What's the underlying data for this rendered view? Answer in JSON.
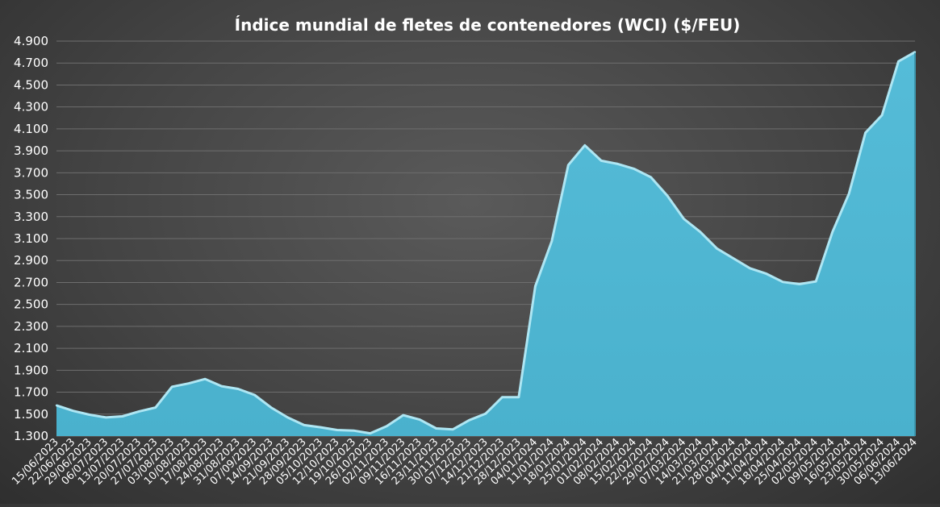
{
  "chart_data": {
    "type": "area",
    "title": "Índice mundial de fletes de contenedores (WCI) ($/FEU)",
    "xlabel": "",
    "ylabel": "",
    "ylim": [
      1300,
      4900
    ],
    "y_ticks": [
      "1.300",
      "1.500",
      "1.700",
      "1.900",
      "2.100",
      "2.300",
      "2.500",
      "2.700",
      "2.900",
      "3.100",
      "3.300",
      "3.500",
      "3.700",
      "3.900",
      "4.100",
      "4.300",
      "4.500",
      "4.700",
      "4.900"
    ],
    "grid": true,
    "legend": "none",
    "colors": {
      "fill": "#4fb8d4",
      "line": "#aee6f3",
      "grid": "#6e6e6e",
      "text": "#ffffff"
    },
    "x": [
      "15/06/2023",
      "22/06/2023",
      "29/06/2023",
      "06/07/2023",
      "13/07/2023",
      "20/07/2023",
      "27/07/2023",
      "03/08/2023",
      "10/08/2023",
      "17/08/2023",
      "24/08/2023",
      "31/08/2023",
      "07/09/2023",
      "14/09/2023",
      "21/09/2023",
      "28/09/2023",
      "05/10/2023",
      "12/10/2023",
      "19/10/2023",
      "26/10/2023",
      "02/11/2023",
      "09/11/2023",
      "16/11/2023",
      "23/11/2023",
      "30/11/2023",
      "07/12/2023",
      "14/12/2023",
      "21/12/2023",
      "28/12/2023",
      "04/01/2024",
      "11/01/2024",
      "18/01/2024",
      "25/01/2024",
      "01/02/2024",
      "08/02/2024",
      "15/02/2024",
      "22/02/2024",
      "29/02/2024",
      "07/03/2024",
      "14/03/2024",
      "21/03/2024",
      "28/03/2024",
      "04/04/2024",
      "11/04/2024",
      "18/04/2024",
      "25/04/2024",
      "02/05/2024",
      "09/05/2024",
      "16/05/2024",
      "23/05/2024",
      "30/05/2024",
      "06/06/2024",
      "13/06/2024"
    ],
    "series": [
      {
        "values": [
          1580,
          1530,
          1495,
          1470,
          1480,
          1525,
          1560,
          1750,
          1780,
          1820,
          1755,
          1730,
          1675,
          1560,
          1470,
          1400,
          1380,
          1355,
          1350,
          1325,
          1390,
          1490,
          1450,
          1370,
          1360,
          1445,
          1505,
          1655,
          1655,
          2665,
          3075,
          3770,
          3950,
          3810,
          3780,
          3735,
          3660,
          3490,
          3280,
          3160,
          3010,
          2920,
          2830,
          2780,
          2705,
          2685,
          2710,
          3160,
          3510,
          4065,
          4225,
          4715,
          4800
        ]
      }
    ]
  }
}
